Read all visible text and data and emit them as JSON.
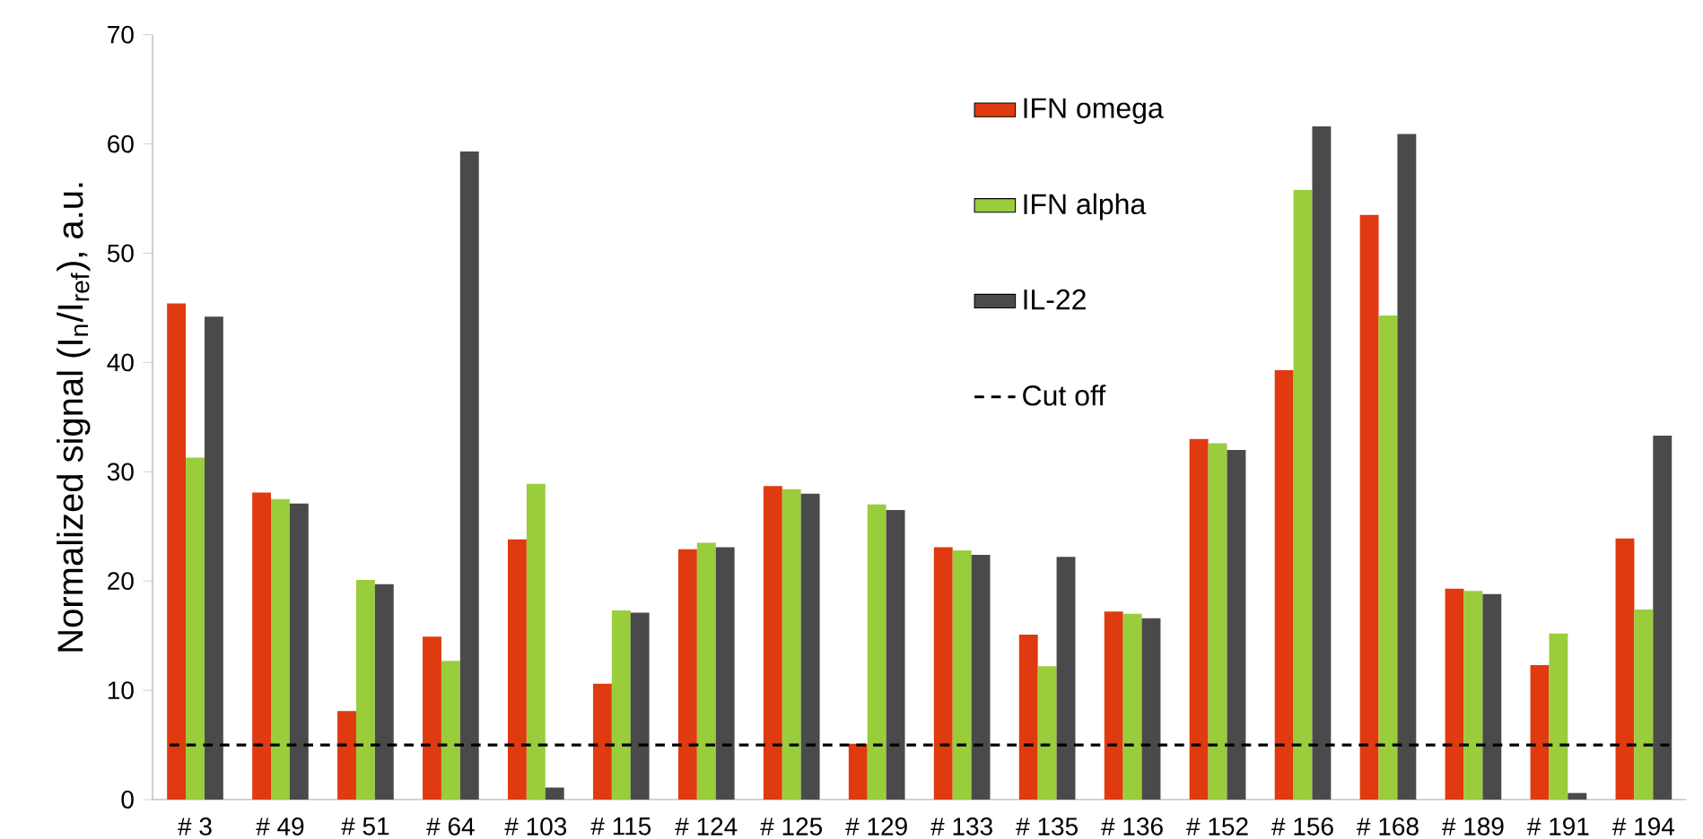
{
  "chart_data": {
    "type": "bar",
    "ylabel": "Normalized signal (I$_{n}$/I$_{ref}$), a.u.",
    "categories": [
      "# 3",
      "# 49",
      "# 51",
      "# 64",
      "# 103",
      "# 115",
      "# 124",
      "# 125",
      "# 129",
      "# 133",
      "# 135",
      "# 136",
      "# 152",
      "# 156",
      "# 168",
      "# 189",
      "# 191",
      "# 194"
    ],
    "series": [
      {
        "name": "IFN omega",
        "color": "#e03a10",
        "values": [
          45.4,
          28.1,
          8.1,
          14.9,
          23.8,
          10.6,
          22.9,
          28.7,
          5.1,
          23.1,
          15.1,
          17.2,
          33.0,
          39.3,
          53.5,
          19.3,
          12.3,
          23.9
        ]
      },
      {
        "name": "IFN alpha",
        "color": "#9acd3c",
        "values": [
          31.3,
          27.5,
          20.1,
          12.7,
          28.9,
          17.3,
          23.5,
          28.4,
          27.0,
          22.8,
          12.2,
          17.0,
          32.6,
          55.8,
          44.3,
          19.1,
          15.2,
          17.4
        ]
      },
      {
        "name": "IL-22",
        "color": "#4a4a4a",
        "values": [
          44.2,
          27.1,
          19.7,
          59.3,
          1.1,
          17.1,
          23.1,
          28.0,
          26.5,
          22.4,
          22.2,
          16.6,
          32.0,
          61.6,
          60.9,
          18.8,
          0.6,
          33.3
        ]
      }
    ],
    "ylim": [
      0,
      70
    ],
    "yticks": [
      0,
      10,
      20,
      30,
      40,
      50,
      60,
      70
    ],
    "ref_lines": [
      {
        "axis": "y",
        "value": 5,
        "label": "Cut off",
        "color": "#000000",
        "line_style": "dashed"
      }
    ],
    "legend": "top right"
  }
}
